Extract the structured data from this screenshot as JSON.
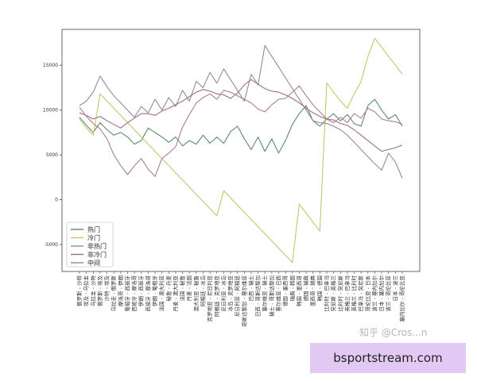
{
  "chart_data": {
    "type": "line",
    "title": "",
    "xlabel": "",
    "ylabel": "",
    "ylim": [
      -8000,
      19000
    ],
    "yticks": [
      -5000,
      0,
      5000,
      10000,
      15000
    ],
    "grid": false,
    "legend_position": "bottom-left",
    "categories": [
      "俄罗斯 - 沙特",
      "埃及 - 乌拉圭",
      "乌拉圭 - 沙特",
      "俄罗斯 - 埃及",
      "沙特 - 埃及",
      "乌拉圭 - 俄罗斯",
      "摩洛哥 - 伊朗",
      "葡萄牙 - 西班牙",
      "西班牙 - 摩洛哥",
      "伊朗 - 西班牙",
      "西班牙 - 摩洛哥",
      "伊朗 - 葡萄牙",
      "法国 - 澳大利亚",
      "秘鲁 - 丹麦",
      "丹麦 - 澳大利亚",
      "法国 - 秘鲁",
      "丹麦 - 法国",
      "澳大利亚 - 秘鲁",
      "阿根廷 - 冰岛",
      "克罗地亚 - 尼日利亚",
      "阿根廷 - 克罗地亚",
      "尼日利亚 - 冰岛",
      "冰岛 - 克罗地亚",
      "尼日利亚 - 阿根廷",
      "哥斯达黎加 - 塞尔维亚",
      "巴西 - 瑞士",
      "巴西 - 哥斯达黎加",
      "塞尔维亚 - 瑞士",
      "瑞士 - 哥斯达黎加",
      "塞尔维亚 - 巴西",
      "德国 - 墨西哥",
      "瑞典 - 韩国",
      "韩国 - 墨西哥",
      "德国 - 瑞典",
      "墨西哥 - 瑞典",
      "韩国 - 德国",
      "比利时 - 巴拿马",
      "突尼斯 - 英格兰",
      "比利时 - 突尼斯",
      "英格兰 - 巴拿马",
      "英格兰 - 比利时",
      "巴拿马 - 突尼斯",
      "哥伦比亚 - 日本",
      "波兰 - 塞内加尔",
      "日本 - 塞内加尔",
      "波兰 - 哥伦比亚",
      "日本 - 波兰",
      "塞内加尔 - 哥伦比亚"
    ],
    "series": [
      {
        "name": "热门",
        "color": "#5e8a6c",
        "values": [
          9200,
          8300,
          7500,
          8600,
          7800,
          7200,
          7500,
          7000,
          6200,
          6600,
          8000,
          7500,
          7000,
          6400,
          7000,
          6000,
          6600,
          6200,
          7200,
          6300,
          7000,
          6300,
          7600,
          8200,
          6800,
          5600,
          7000,
          5400,
          6800,
          5200,
          6600,
          8400,
          9600,
          10500,
          8800,
          8200,
          9000,
          9600,
          8800,
          9500,
          8500,
          8200,
          10500,
          11200,
          10000,
          9000,
          9500,
          8200
        ]
      },
      {
        "name": "冷门",
        "color": "#c6c46f",
        "values": [
          9000,
          8000,
          7200,
          11800,
          11000,
          10200,
          9400,
          8600,
          7800,
          7000,
          6200,
          5400,
          4600,
          3800,
          3000,
          2200,
          1400,
          600,
          -200,
          -1000,
          -1800,
          1000,
          200,
          -600,
          -1400,
          -2200,
          -3000,
          -3800,
          -4600,
          -5400,
          -6200,
          -7000,
          -500,
          -1500,
          -2500,
          -3500,
          13000,
          12000,
          11000,
          10200,
          11800,
          13200,
          16000,
          18000,
          17000,
          16000,
          15000,
          14000
        ]
      },
      {
        "name": "非热门",
        "color": "#8d8d9a",
        "values": [
          10500,
          11000,
          12000,
          13800,
          12600,
          11600,
          10800,
          10000,
          9200,
          10400,
          9700,
          11200,
          10000,
          11400,
          10400,
          12200,
          11000,
          13200,
          12500,
          14200,
          13000,
          14600,
          13400,
          12200,
          11000,
          14000,
          12800,
          17200,
          16000,
          14800,
          13600,
          12400,
          11200,
          10000,
          8800,
          8600,
          8500,
          8200,
          7800,
          7200,
          6400,
          5600,
          4800,
          4000,
          3300,
          5200,
          4200,
          2400
        ]
      },
      {
        "name": "非冷门",
        "color": "#9b6d85",
        "values": [
          9700,
          9400,
          9000,
          9300,
          8800,
          8400,
          8000,
          8600,
          9100,
          9600,
          9600,
          9400,
          9900,
          10200,
          10600,
          11000,
          11500,
          12000,
          12300,
          12100,
          11800,
          11700,
          11300,
          11900,
          12800,
          13400,
          12900,
          12400,
          12100,
          12000,
          11700,
          11300,
          10800,
          10200,
          9700,
          9300,
          9000,
          8900,
          8500,
          8300,
          7800,
          7200,
          6600,
          6000,
          5400,
          5600,
          5800,
          6100
        ]
      },
      {
        "name": "中间",
        "color": "#a77e98",
        "values": [
          10300,
          9300,
          8500,
          7900,
          6800,
          5000,
          3800,
          2800,
          3800,
          4600,
          3400,
          2600,
          4600,
          5200,
          5900,
          8100,
          9500,
          10800,
          11400,
          11800,
          11200,
          12200,
          12000,
          11600,
          11200,
          10800,
          10100,
          9800,
          10600,
          11200,
          11300,
          12000,
          12700,
          11600,
          10600,
          9800,
          9000,
          8600,
          9200,
          8600,
          9600,
          9100,
          10200,
          9800,
          9000,
          8800,
          8700,
          8400
        ]
      }
    ]
  },
  "watermark": "知乎 @Cros...n",
  "banner": {
    "text": "bsportstream.com"
  }
}
